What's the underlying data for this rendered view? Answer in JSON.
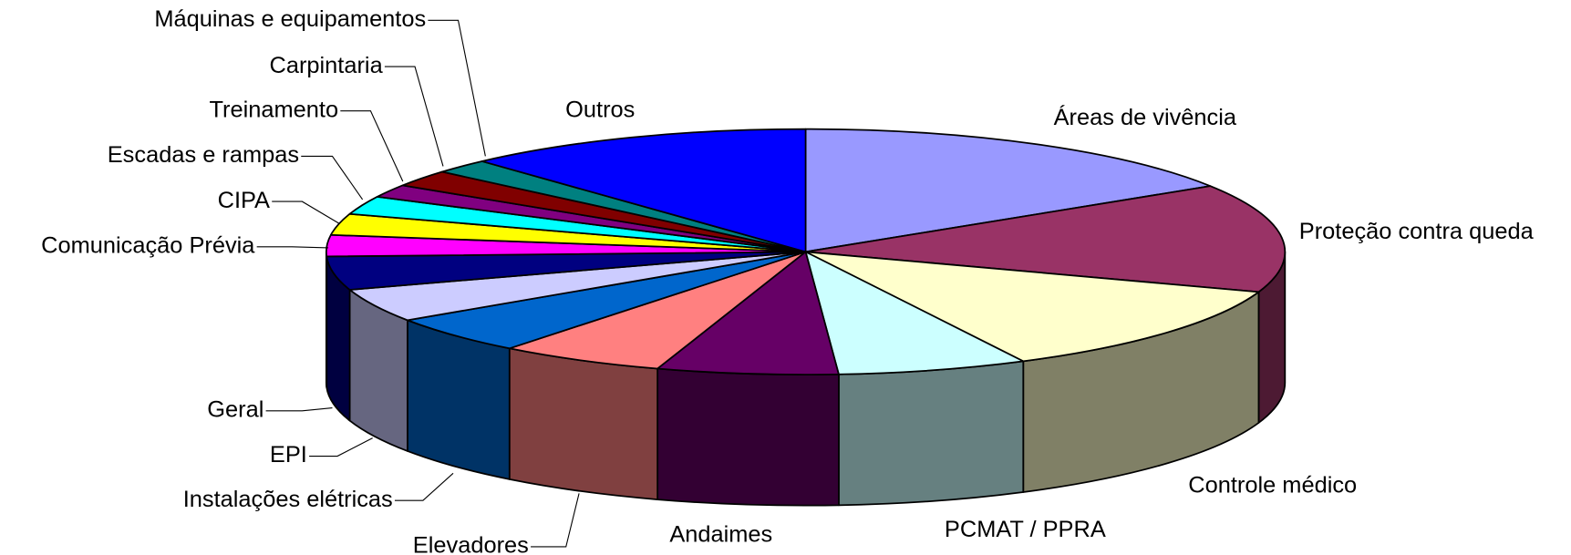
{
  "chart_data": {
    "type": "pie3d",
    "categories": [
      "Áreas de vivência",
      "Proteção contra queda",
      "Controle médico",
      "PCMAT / PPRA",
      "Andaimes",
      "Elevadores",
      "Instalações elétricas",
      "EPI",
      "Geral",
      "Comunicação Prévia",
      "CIPA",
      "Escadas e rampas",
      "Treinamento",
      "Carpintaria",
      "Máquinas e equipamentos",
      "Outros"
    ],
    "values": [
      16.0,
      14.3,
      12.2,
      6.4,
      6.1,
      5.6,
      5.0,
      4.4,
      4.4,
      2.8,
      2.8,
      2.4,
      1.7,
      2.2,
      1.9,
      11.8
    ],
    "colors": [
      "#9999ff",
      "#993366",
      "#ffffcc",
      "#ccffff",
      "#660066",
      "#ff8080",
      "#0066cc",
      "#ccccff",
      "#000080",
      "#ff00ff",
      "#ffff00",
      "#00ffff",
      "#800080",
      "#800000",
      "#008080",
      "#0000ff"
    ]
  }
}
